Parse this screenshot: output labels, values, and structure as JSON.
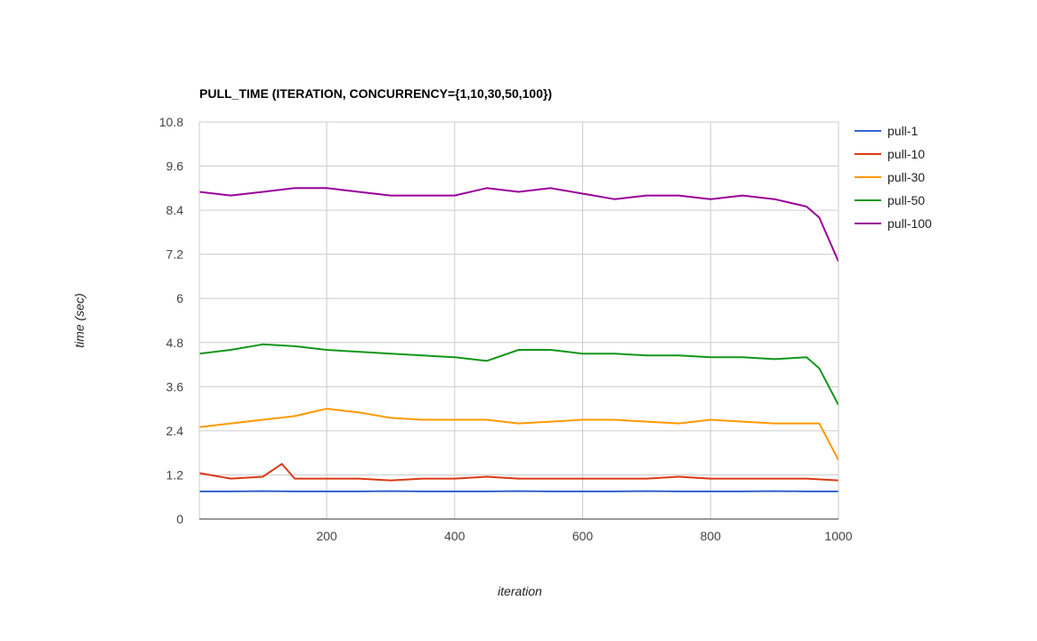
{
  "chart_data": {
    "type": "line",
    "title": "PULL_TIME (ITERATION, CONCURRENCY={1,10,30,50,100})",
    "xlabel": "iteration",
    "ylabel": "time (sec)",
    "xlim": [
      1,
      1000
    ],
    "ylim": [
      0,
      10.8
    ],
    "x_ticks": [
      200,
      400,
      600,
      800,
      1000
    ],
    "x_tick_labels": [
      "200",
      "400",
      "600",
      "800",
      "1000"
    ],
    "y_ticks": [
      0,
      1.2,
      2.4,
      3.6,
      4.8,
      6,
      7.2,
      8.4,
      9.6,
      10.8
    ],
    "y_tick_labels": [
      "0",
      "1.2",
      "2.4",
      "3.6",
      "4.8",
      "6",
      "7.2",
      "8.4",
      "9.6",
      "10.8"
    ],
    "grid": true,
    "legend_position": "right",
    "series": [
      {
        "name": "pull-1",
        "color": "#3366cc",
        "x": [
          1,
          50,
          100,
          150,
          200,
          250,
          300,
          350,
          400,
          450,
          500,
          550,
          600,
          650,
          700,
          750,
          800,
          850,
          900,
          950,
          1000
        ],
        "values": [
          0.75,
          0.75,
          0.76,
          0.75,
          0.75,
          0.75,
          0.76,
          0.75,
          0.75,
          0.75,
          0.76,
          0.75,
          0.75,
          0.75,
          0.76,
          0.75,
          0.75,
          0.75,
          0.76,
          0.75,
          0.75
        ]
      },
      {
        "name": "pull-10",
        "color": "#dc3912",
        "x": [
          1,
          50,
          100,
          130,
          150,
          200,
          250,
          300,
          350,
          400,
          450,
          500,
          550,
          600,
          650,
          700,
          750,
          800,
          850,
          900,
          950,
          1000
        ],
        "values": [
          1.25,
          1.1,
          1.15,
          1.5,
          1.1,
          1.1,
          1.1,
          1.05,
          1.1,
          1.1,
          1.15,
          1.1,
          1.1,
          1.1,
          1.1,
          1.1,
          1.15,
          1.1,
          1.1,
          1.1,
          1.1,
          1.05
        ]
      },
      {
        "name": "pull-30",
        "color": "#ff9900",
        "x": [
          1,
          50,
          100,
          150,
          200,
          250,
          300,
          350,
          400,
          450,
          500,
          550,
          600,
          650,
          700,
          750,
          800,
          850,
          900,
          950,
          970,
          1000
        ],
        "values": [
          2.5,
          2.6,
          2.7,
          2.8,
          3.0,
          2.9,
          2.75,
          2.7,
          2.7,
          2.7,
          2.6,
          2.65,
          2.7,
          2.7,
          2.65,
          2.6,
          2.7,
          2.65,
          2.6,
          2.6,
          2.6,
          1.6
        ]
      },
      {
        "name": "pull-50",
        "color": "#109618",
        "x": [
          1,
          50,
          100,
          150,
          200,
          250,
          300,
          350,
          400,
          450,
          500,
          550,
          600,
          650,
          700,
          750,
          800,
          850,
          900,
          950,
          970,
          1000
        ],
        "values": [
          4.5,
          4.6,
          4.75,
          4.7,
          4.6,
          4.55,
          4.5,
          4.45,
          4.4,
          4.3,
          4.6,
          4.6,
          4.5,
          4.5,
          4.45,
          4.45,
          4.4,
          4.4,
          4.35,
          4.4,
          4.1,
          3.1
        ]
      },
      {
        "name": "pull-100",
        "color": "#990099",
        "x": [
          1,
          50,
          100,
          150,
          200,
          250,
          300,
          350,
          400,
          450,
          500,
          550,
          600,
          650,
          700,
          750,
          800,
          850,
          900,
          950,
          970,
          1000
        ],
        "values": [
          8.9,
          8.8,
          8.9,
          9.0,
          9.0,
          8.9,
          8.8,
          8.8,
          8.8,
          9.0,
          8.9,
          9.0,
          8.85,
          8.7,
          8.8,
          8.8,
          8.7,
          8.8,
          8.7,
          8.5,
          8.2,
          7.0
        ]
      }
    ]
  }
}
